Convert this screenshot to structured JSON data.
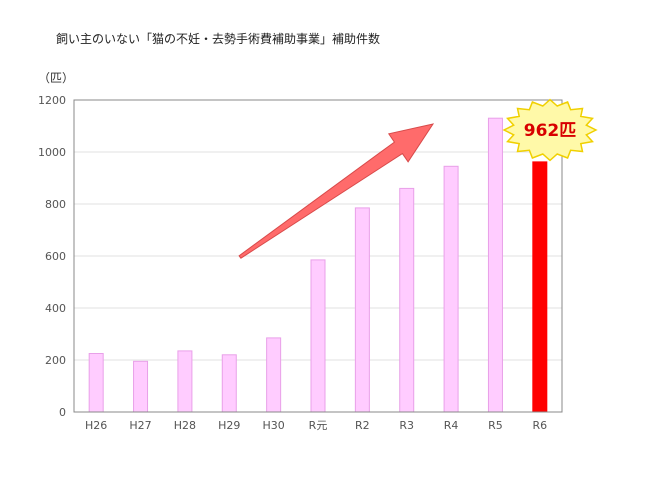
{
  "chart_data": {
    "type": "bar",
    "title": "飼い主のいない「猫の不妊・去勢手術費補助事業」補助件数",
    "unit_label": "（匹）",
    "categories": [
      "H26",
      "H27",
      "H28",
      "H29",
      "H30",
      "R元",
      "R2",
      "R3",
      "R4",
      "R5",
      "R6"
    ],
    "values": [
      225,
      195,
      235,
      220,
      285,
      585,
      785,
      860,
      945,
      1130,
      962
    ],
    "highlight_index": 10,
    "highlight_label": "962匹",
    "ylim": [
      0,
      1200
    ],
    "yticks": [
      0,
      200,
      400,
      600,
      800,
      1000,
      1200
    ],
    "grid": true,
    "colors": {
      "bar_fill": "#ffccff",
      "bar_stroke": "#e8a0e8",
      "highlight": "#ff0000",
      "arrow": "#ff6b6b",
      "burst_fill": "#fff9a8",
      "burst_stroke": "#f0d000",
      "burst_text": "#d80000"
    }
  }
}
